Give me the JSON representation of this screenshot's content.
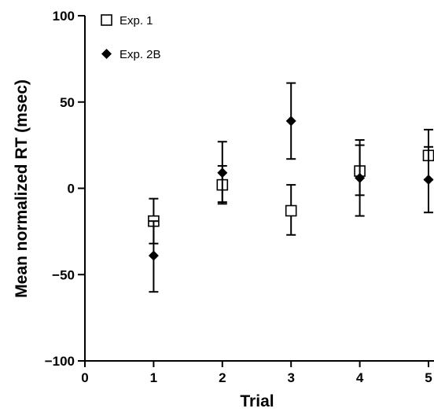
{
  "chart_data": {
    "type": "scatter",
    "xlabel": "Trial",
    "ylabel": "Mean normalized RT (msec)",
    "xlim": [
      0,
      5
    ],
    "ylim": [
      -100,
      100
    ],
    "x_ticks": [
      0,
      1,
      2,
      3,
      4,
      5
    ],
    "y_ticks": [
      -100,
      -50,
      0,
      50,
      100
    ],
    "x_tick_labels": [
      "0",
      "1",
      "2",
      "3",
      "4",
      "5"
    ],
    "y_tick_labels": [
      "−100",
      "−50",
      "0",
      "50",
      "100"
    ],
    "grid": false,
    "legend_position": "top-left",
    "series": [
      {
        "name": "Exp. 1",
        "marker": "open-square",
        "x": [
          1,
          2,
          3,
          4,
          5
        ],
        "y": [
          -19,
          2,
          -13,
          10,
          19
        ],
        "err_low": [
          -32,
          -8,
          -27,
          -4,
          5
        ],
        "err_high": [
          -6,
          13,
          2,
          25,
          34
        ]
      },
      {
        "name": "Exp. 2B",
        "marker": "filled-diamond",
        "x": [
          1,
          2,
          3,
          4,
          5
        ],
        "y": [
          -39,
          9,
          39,
          6,
          5
        ],
        "err_low": [
          -60,
          -9,
          17,
          -16,
          -14
        ],
        "err_high": [
          -19,
          27,
          61,
          28,
          24
        ]
      }
    ]
  }
}
